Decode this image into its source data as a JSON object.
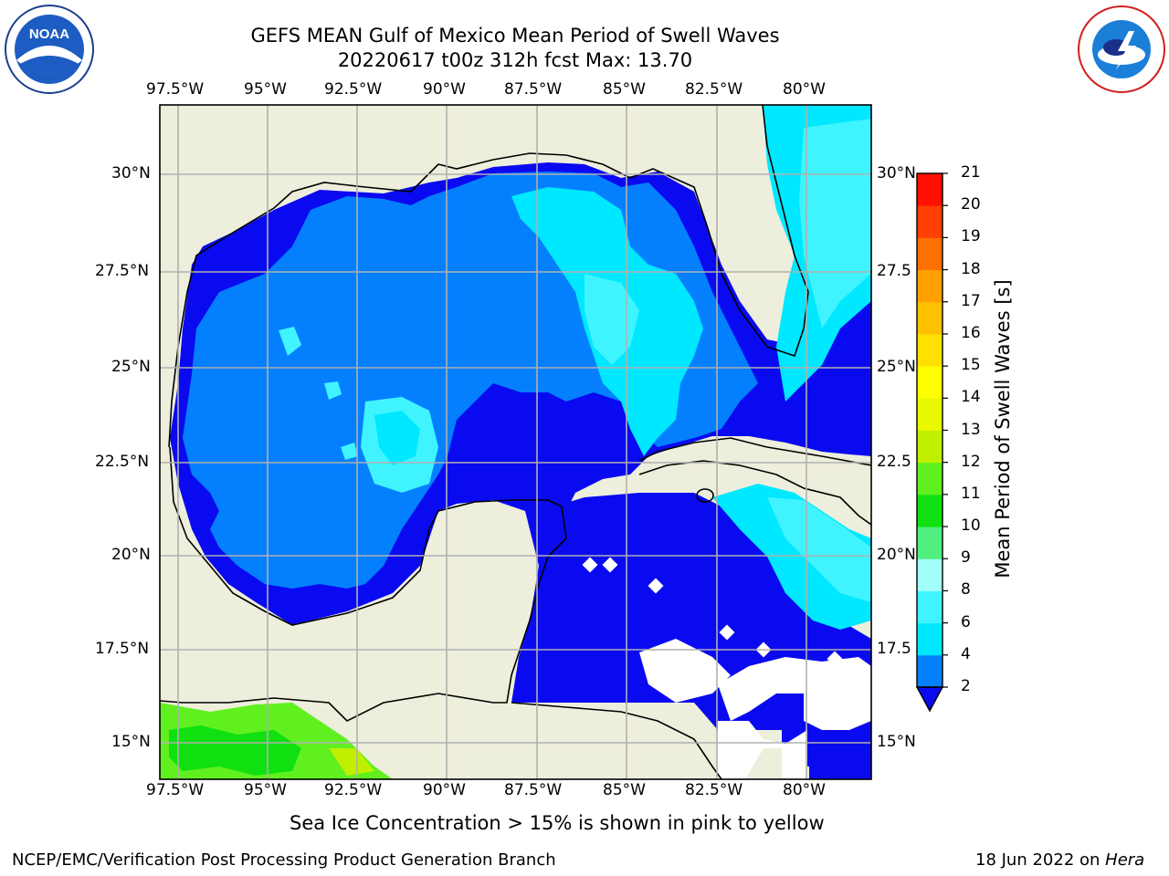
{
  "title_line1": "GEFS MEAN Gulf of Mexico Mean Period of Swell Waves",
  "title_line2": "20220617 t00z 312h fcst   Max: 13.70",
  "logos": {
    "left": "NOAA",
    "right": "NATIONAL WEATHER SERVICE"
  },
  "x_ticks": [
    "97.5°W",
    "95°W",
    "92.5°W",
    "90°W",
    "87.5°W",
    "85°W",
    "82.5°W",
    "80°W"
  ],
  "y_ticks_left": [
    "30°N",
    "27.5°N",
    "25°N",
    "22.5°N",
    "20°N",
    "17.5°N",
    "15°N"
  ],
  "y_ticks_right": [
    "30°N",
    "27.5",
    "25°N",
    "22.5",
    "20°N",
    "17.5",
    "15°N"
  ],
  "colorbar": {
    "label": "Mean Period of Swell Waves [s]",
    "ticks": [
      "2",
      "4",
      "6",
      "8",
      "9",
      "10",
      "11",
      "12",
      "13",
      "14",
      "15",
      "16",
      "17",
      "18",
      "19",
      "20",
      "21"
    ],
    "colors": [
      "#0a0af0",
      "#0480ff",
      "#00e8ff",
      "#40f4ff",
      "#a0fff8",
      "#50f080",
      "#10e010",
      "#60f020",
      "#c0f000",
      "#e8f800",
      "#ffff00",
      "#ffe000",
      "#ffc000",
      "#ffa000",
      "#ff7000",
      "#ff4000",
      "#ff1000",
      "#ff0000"
    ]
  },
  "footer_note": "Sea Ice Concentration > 15% is shown in pink to yellow",
  "credit_left": "NCEP/EMC/Verification Post Processing Product Generation Branch",
  "credit_right_date": "18 Jun 2022 on ",
  "credit_right_host": "Hera",
  "colors": {
    "land": "#eeeedc",
    "grid": "#b0b0b0"
  }
}
